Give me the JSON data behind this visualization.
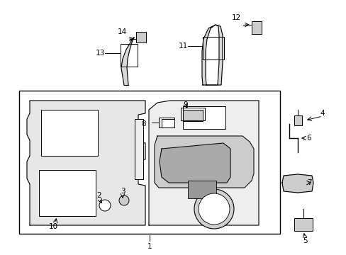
{
  "background_color": "#ffffff",
  "figure_width": 4.89,
  "figure_height": 3.6,
  "dpi": 100
}
